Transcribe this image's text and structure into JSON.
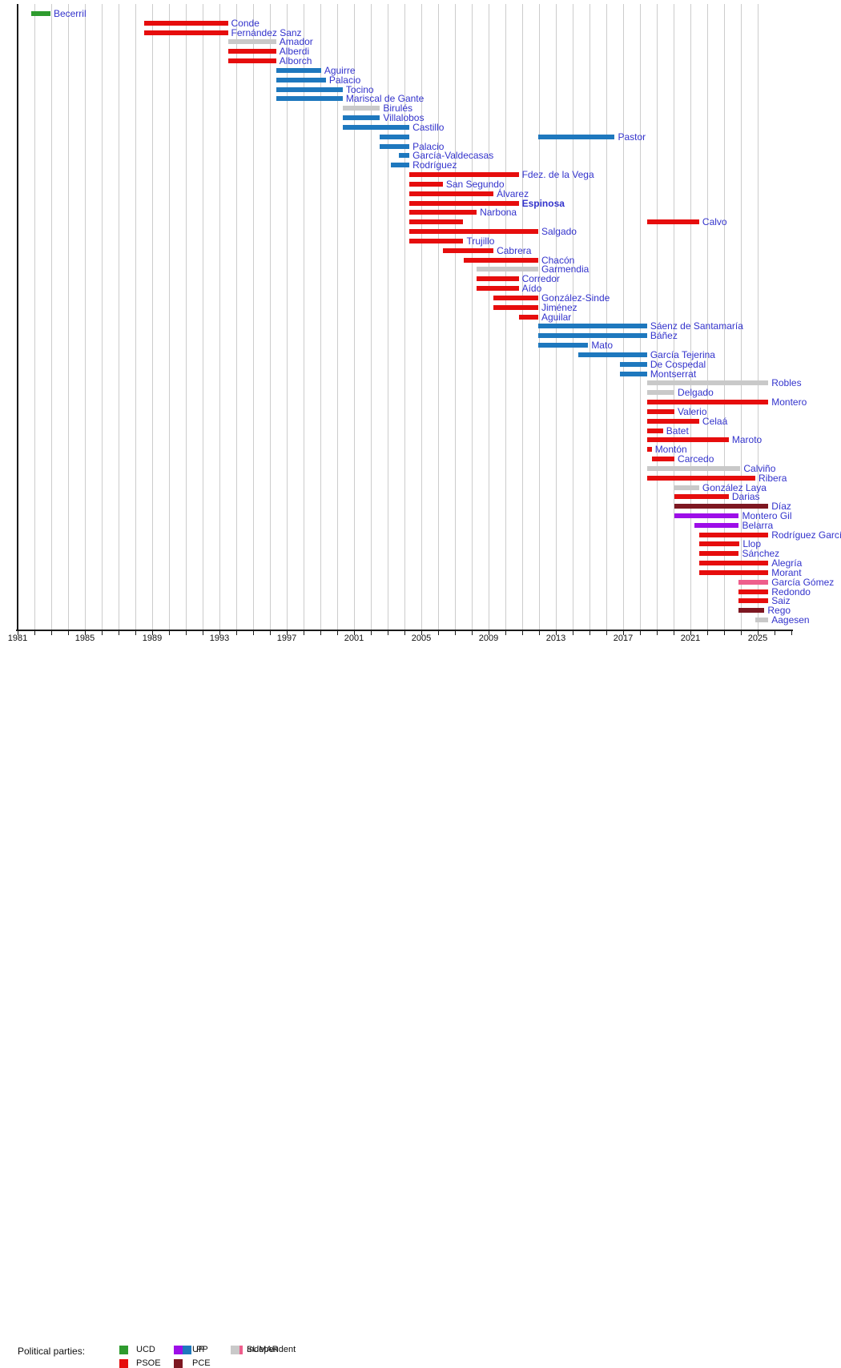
{
  "legend": {
    "title": "Political parties:",
    "entries": [
      {
        "id": "UCD",
        "label": "UCD",
        "color": "#2e9b2e"
      },
      {
        "id": "PSOE",
        "label": "PSOE",
        "color": "#e60d0d"
      },
      {
        "id": "UP",
        "label": "UP",
        "color": "#9d0ee8"
      },
      {
        "id": "PP",
        "label": "PP",
        "color": "#1e78be"
      },
      {
        "id": "PCE",
        "label": "PCE",
        "color": "#7d1721"
      },
      {
        "id": "SUMAR",
        "label": "SUMAR",
        "color": "#ee5e8c"
      },
      {
        "id": "Independent",
        "label": "Independent",
        "color": "#c9c9c9"
      }
    ]
  },
  "chart_data": {
    "type": "gantt-timeline",
    "title": "",
    "xlabel": "",
    "ylabel": "",
    "axis": {
      "start_year": 1981,
      "end_year": 2027,
      "minor_tick_interval": 1,
      "gridline_years_start": 1982,
      "gridline_years_end": 2025,
      "tick_labels": [
        "1981",
        "1985",
        "1989",
        "1993",
        "1997",
        "2001",
        "2005",
        "2009",
        "2013",
        "2017",
        "2021",
        "2025"
      ],
      "label_interval": 4
    },
    "party_colors": {
      "UCD": "#2e9b2e",
      "PSOE": "#e60d0d",
      "PP": "#1e78be",
      "UP": "#9d0ee8",
      "PCE": "#7d1721",
      "Independent": "#c9c9c9",
      "SUMAR": "#ee5e8c"
    },
    "label_color": "#3333cc",
    "series": [
      {
        "name": "Becerril",
        "party": "UCD",
        "segments": [
          [
            1981.8,
            1982.95
          ]
        ]
      },
      {
        "name": "Conde",
        "party": "PSOE",
        "segments": [
          [
            1988.5,
            1993.5
          ]
        ]
      },
      {
        "name": "Fernández Sanz",
        "party": "PSOE",
        "segments": [
          [
            1988.5,
            1993.5
          ]
        ]
      },
      {
        "name": "Amador",
        "party": "Independent",
        "segments": [
          [
            1993.5,
            1996.37
          ]
        ]
      },
      {
        "name": "Alberdi",
        "party": "PSOE",
        "segments": [
          [
            1993.5,
            1996.37
          ]
        ]
      },
      {
        "name": "Alborch",
        "party": "PSOE",
        "segments": [
          [
            1993.5,
            1996.37
          ]
        ]
      },
      {
        "name": "Aguirre",
        "party": "PP",
        "segments": [
          [
            1996.37,
            1999.04
          ]
        ]
      },
      {
        "name": "Palacio",
        "party": "PP",
        "segments": [
          [
            1996.37,
            1999.33
          ]
        ]
      },
      {
        "name": "Tocino",
        "party": "PP",
        "segments": [
          [
            1996.37,
            2000.33
          ]
        ]
      },
      {
        "name": "Mariscal de Gante",
        "party": "PP",
        "segments": [
          [
            1996.37,
            2000.33
          ]
        ]
      },
      {
        "name": "Birulés",
        "party": "Independent",
        "segments": [
          [
            2000.33,
            2002.54
          ]
        ]
      },
      {
        "name": "Villalobos",
        "party": "PP",
        "segments": [
          [
            2000.33,
            2002.54
          ]
        ]
      },
      {
        "name": "Castillo",
        "party": "PP",
        "segments": [
          [
            2000.33,
            2004.29
          ]
        ]
      },
      {
        "name": "Pastor",
        "party": "PP",
        "segments": [
          [
            2002.54,
            2004.29
          ],
          [
            2011.95,
            2016.5
          ]
        ]
      },
      {
        "name": "Palacio",
        "party": "PP",
        "segments": [
          [
            2002.54,
            2004.29
          ]
        ]
      },
      {
        "name": "García-Valdecasas",
        "party": "PP",
        "segments": [
          [
            2003.67,
            2004.29
          ]
        ]
      },
      {
        "name": "Rodríguez",
        "party": "PP",
        "segments": [
          [
            2003.17,
            2004.29
          ]
        ]
      },
      {
        "name": "Fdez. de la Vega",
        "party": "PSOE",
        "segments": [
          [
            2004.29,
            2010.79
          ]
        ]
      },
      {
        "name": "San Segundo",
        "party": "PSOE",
        "segments": [
          [
            2004.29,
            2006.28
          ]
        ]
      },
      {
        "name": "Álvarez",
        "party": "PSOE",
        "segments": [
          [
            2004.29,
            2009.29
          ]
        ]
      },
      {
        "name": "Espinosa",
        "party": "PSOE",
        "bold": true,
        "segments": [
          [
            2004.29,
            2010.79
          ]
        ]
      },
      {
        "name": "Narbona",
        "party": "PSOE",
        "segments": [
          [
            2004.29,
            2008.29
          ]
        ]
      },
      {
        "name": "Calvo",
        "party": "PSOE",
        "segments": [
          [
            2004.29,
            2007.5
          ],
          [
            2018.42,
            2021.52
          ]
        ]
      },
      {
        "name": "Salgado",
        "party": "PSOE",
        "segments": [
          [
            2004.29,
            2011.95
          ]
        ]
      },
      {
        "name": "Trujillo",
        "party": "PSOE",
        "segments": [
          [
            2004.29,
            2007.5
          ]
        ]
      },
      {
        "name": "Cabrera",
        "party": "PSOE",
        "segments": [
          [
            2006.28,
            2009.29
          ]
        ]
      },
      {
        "name": "Chacón",
        "party": "PSOE",
        "segments": [
          [
            2007.5,
            2011.95
          ]
        ]
      },
      {
        "name": "Garmendia",
        "party": "Independent",
        "segments": [
          [
            2008.29,
            2011.95
          ]
        ]
      },
      {
        "name": "Corredor",
        "party": "PSOE",
        "segments": [
          [
            2008.29,
            2010.79
          ]
        ]
      },
      {
        "name": "Aído",
        "party": "PSOE",
        "segments": [
          [
            2008.29,
            2010.79
          ]
        ]
      },
      {
        "name": "González-Sinde",
        "party": "PSOE",
        "segments": [
          [
            2009.29,
            2011.95
          ]
        ]
      },
      {
        "name": "Jiménez",
        "party": "PSOE",
        "segments": [
          [
            2009.29,
            2011.95
          ]
        ]
      },
      {
        "name": "Aguilar",
        "party": "PSOE",
        "segments": [
          [
            2010.79,
            2011.95
          ]
        ]
      },
      {
        "name": "Sáenz de Santamaría",
        "party": "PP",
        "segments": [
          [
            2011.95,
            2018.42
          ]
        ]
      },
      {
        "name": "Báñez",
        "party": "PP",
        "segments": [
          [
            2011.95,
            2018.42
          ]
        ]
      },
      {
        "name": "Mato",
        "party": "PP",
        "segments": [
          [
            2011.95,
            2014.92
          ]
        ]
      },
      {
        "name": "García Tejerina",
        "party": "PP",
        "segments": [
          [
            2014.33,
            2018.42
          ]
        ]
      },
      {
        "name": "De Cospedal",
        "party": "PP",
        "segments": [
          [
            2016.8,
            2018.42
          ]
        ]
      },
      {
        "name": "Montserrat",
        "party": "PP",
        "segments": [
          [
            2016.8,
            2018.42
          ]
        ]
      },
      {
        "name": "Robles",
        "party": "Independent",
        "segments": [
          [
            2018.42,
            2025.63
          ]
        ]
      },
      {
        "name": "Delgado",
        "party": "Independent",
        "segments": [
          [
            2018.42,
            2020.05
          ]
        ]
      },
      {
        "name": "Montero",
        "party": "PSOE",
        "segments": [
          [
            2018.42,
            2025.63
          ]
        ]
      },
      {
        "name": "Valerio",
        "party": "PSOE",
        "segments": [
          [
            2018.42,
            2020.05
          ]
        ]
      },
      {
        "name": "Celaá",
        "party": "PSOE",
        "segments": [
          [
            2018.42,
            2021.52
          ]
        ]
      },
      {
        "name": "Batet",
        "party": "PSOE",
        "segments": [
          [
            2018.42,
            2019.37
          ]
        ]
      },
      {
        "name": "Maroto",
        "party": "PSOE",
        "segments": [
          [
            2018.42,
            2023.28
          ]
        ]
      },
      {
        "name": "Montón",
        "party": "PSOE",
        "segments": [
          [
            2018.42,
            2018.7
          ]
        ]
      },
      {
        "name": "Carcedo",
        "party": "PSOE",
        "segments": [
          [
            2018.7,
            2020.05
          ]
        ]
      },
      {
        "name": "Calviño",
        "party": "Independent",
        "segments": [
          [
            2018.42,
            2023.97
          ]
        ]
      },
      {
        "name": "Ribera",
        "party": "PSOE",
        "segments": [
          [
            2018.42,
            2024.86
          ]
        ]
      },
      {
        "name": "González Laya",
        "party": "Independent",
        "segments": [
          [
            2020.05,
            2021.52
          ]
        ]
      },
      {
        "name": "Darias",
        "party": "PSOE",
        "segments": [
          [
            2020.05,
            2023.28
          ]
        ]
      },
      {
        "name": "Díaz",
        "party": "PCE",
        "segments": [
          [
            2020.05,
            2025.63
          ]
        ]
      },
      {
        "name": "Montero Gil",
        "party": "UP",
        "segments": [
          [
            2020.05,
            2023.88
          ]
        ]
      },
      {
        "name": "Belarra",
        "party": "UP",
        "segments": [
          [
            2021.25,
            2023.88
          ]
        ]
      },
      {
        "name": "Rodríguez García",
        "party": "PSOE",
        "segments": [
          [
            2021.54,
            2025.63
          ]
        ]
      },
      {
        "name": "Llop",
        "party": "PSOE",
        "segments": [
          [
            2021.54,
            2023.92
          ]
        ]
      },
      {
        "name": "Sánchez",
        "party": "PSOE",
        "segments": [
          [
            2021.54,
            2023.88
          ]
        ]
      },
      {
        "name": "Alegría",
        "party": "PSOE",
        "segments": [
          [
            2021.54,
            2025.63
          ]
        ]
      },
      {
        "name": "Morant",
        "party": "PSOE",
        "segments": [
          [
            2021.54,
            2025.63
          ]
        ]
      },
      {
        "name": "García Gómez",
        "party": "SUMAR",
        "segments": [
          [
            2023.88,
            2025.63
          ]
        ]
      },
      {
        "name": "Redondo",
        "party": "PSOE",
        "segments": [
          [
            2023.88,
            2025.63
          ]
        ]
      },
      {
        "name": "Saiz",
        "party": "PSOE",
        "segments": [
          [
            2023.88,
            2025.63
          ]
        ]
      },
      {
        "name": "Rego",
        "party": "PCE",
        "segments": [
          [
            2023.88,
            2025.4
          ]
        ]
      },
      {
        "name": "Aagesen",
        "party": "Independent",
        "segments": [
          [
            2024.86,
            2025.63
          ]
        ]
      }
    ]
  }
}
